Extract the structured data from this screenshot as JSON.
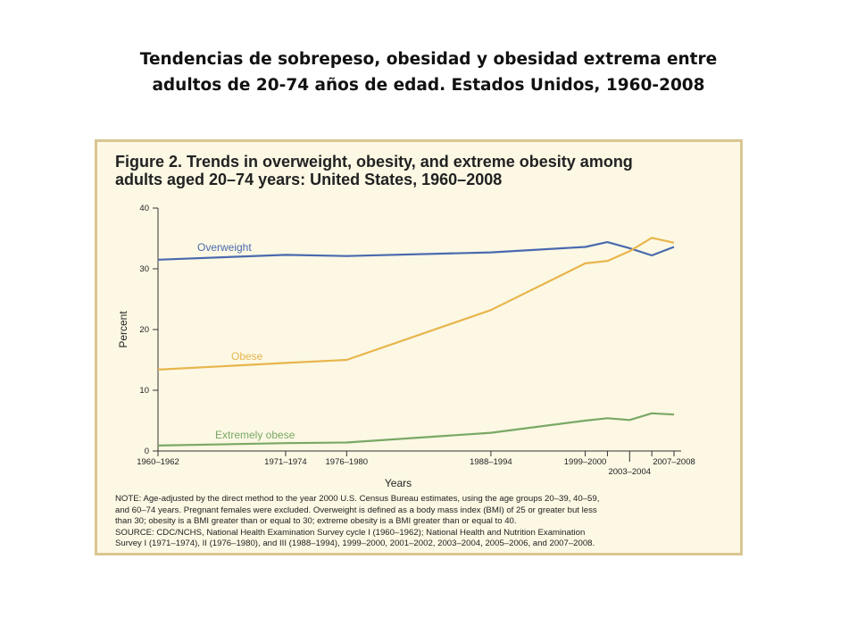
{
  "slide": {
    "title_line1": "Tendencias de sobrepeso, obesidad y obesidad extrema entre",
    "title_line2": "adultos de 20-74 años de edad. Estados Unidos, 1960-2008"
  },
  "figure": {
    "title_line1": "Figure 2. Trends in overweight, obesity, and extreme obesity among",
    "title_line2": "adults aged 20–74 years: United States, 1960–2008",
    "note_lines": [
      "NOTE: Age-adjusted by the direct method to the year 2000 U.S. Census Bureau estimates, using the age groups 20–39, 40–59,",
      "and 60–74 years. Pregnant females were excluded. Overweight is defined as a body mass index (BMI) of 25 or greater but less",
      "than 30; obesity is a BMI greater than or equal to 30; extreme obesity is a BMI greater than or equal to 40.",
      "SOURCE: CDC/NCHS, National Health Examination Survey cycle I (1960–1962); National Health and Nutrition Examination",
      "Survey I (1971–1974), II (1976–1980), and III (1988–1994), 1999–2000, 2001–2002, 2003–2004, 2005–2006, and 2007–2008."
    ]
  },
  "chart_data": {
    "type": "line",
    "title": "Figure 2. Trends in overweight, obesity, and extreme obesity among adults aged 20–74 years: United States, 1960–2008",
    "xlabel": "Years",
    "ylabel": "Percent",
    "ylim": [
      0,
      40
    ],
    "yticks": [
      0,
      10,
      20,
      30,
      40
    ],
    "grid": false,
    "x": [
      1961,
      1972.5,
      1978,
      1991,
      1999.5,
      2001.5,
      2003.5,
      2005.5,
      2007.5
    ],
    "x_ticks": [
      {
        "x": 1961,
        "label": "1960–1962",
        "row": 1
      },
      {
        "x": 1972.5,
        "label": "1971–1974",
        "row": 1
      },
      {
        "x": 1978,
        "label": "1976–1980",
        "row": 1
      },
      {
        "x": 1991,
        "label": "1988–1994",
        "row": 1
      },
      {
        "x": 1999.5,
        "label": "1999–2000",
        "row": 1
      },
      {
        "x": 2003.5,
        "label": "2003–2004",
        "row": 2
      },
      {
        "x": 2007.5,
        "label": "2007–2008",
        "row": 1
      }
    ],
    "x_minor_ticks": [
      2001.5,
      2005.5
    ],
    "series": [
      {
        "name": "Overweight",
        "color": "#4a6aae",
        "values": [
          31.5,
          32.3,
          32.1,
          32.7,
          33.6,
          34.4,
          33.4,
          32.2,
          33.6
        ]
      },
      {
        "name": "Obese",
        "color": "#e8b54c",
        "values": [
          13.4,
          14.5,
          15.0,
          23.2,
          30.9,
          31.3,
          32.9,
          35.1,
          34.3
        ]
      },
      {
        "name": "Extremely obese",
        "color": "#7aa865",
        "values": [
          0.9,
          1.3,
          1.4,
          3.0,
          5.0,
          5.4,
          5.1,
          6.2,
          6.0
        ]
      }
    ]
  }
}
